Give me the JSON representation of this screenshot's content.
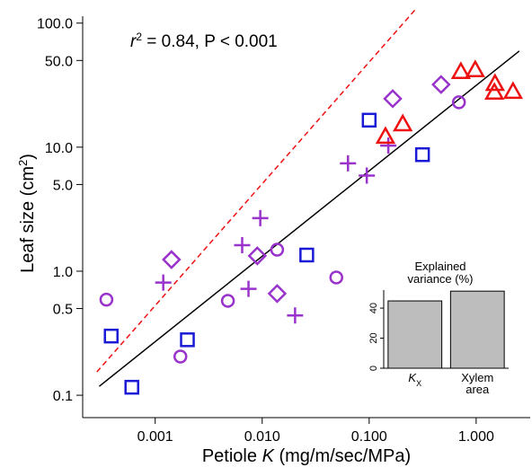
{
  "chart_data": [
    {
      "type": "scatter",
      "annotation": [
        "r",
        "2",
        " = 0.84, P < 0.001"
      ],
      "x_label": [
        "Petiole ",
        "K",
        " (mg/m/sec/MPa)"
      ],
      "y_label": [
        "Leaf size (cm",
        "2",
        ")"
      ],
      "log_x": true,
      "log_y": true,
      "xlim": [
        0.00021,
        3.2
      ],
      "ylim": [
        0.066,
        130
      ],
      "xticks": [
        {
          "value": 0.001,
          "label": "0.001"
        },
        {
          "value": 0.01,
          "label": "0.010"
        },
        {
          "value": 0.1,
          "label": "0.100"
        },
        {
          "value": 1,
          "label": "1.000"
        }
      ],
      "yticks": [
        0.1,
        0.5,
        {
          "value": 1,
          "label": "1.0"
        },
        {
          "value": 5,
          "label": "5.0"
        },
        {
          "value": 10,
          "label": "10.0"
        },
        {
          "value": 50,
          "label": "50.0"
        },
        {
          "value": 100,
          "label": "100.0"
        }
      ],
      "series": [
        {
          "marker": "square",
          "color": "#1a1ad6",
          "x": [
            0.000388,
            0.000605,
            0.002,
            0.0261,
            0.1,
            0.315
          ],
          "values": [
            0.3,
            0.116,
            0.28,
            1.35,
            16.5,
            8.7
          ]
        },
        {
          "marker": "circle",
          "color": "#9933cc",
          "x": [
            0.00035,
            0.00172,
            0.00478,
            0.0138,
            0.0493,
            0.69
          ],
          "values": [
            0.59,
            0.205,
            0.577,
            1.49,
            0.89,
            23
          ]
        },
        {
          "marker": "diamond",
          "color": "#9933cc",
          "x": [
            0.00142,
            0.009,
            0.0138,
            0.166,
            0.47
          ],
          "values": [
            1.24,
            1.33,
            0.66,
            24.6,
            32
          ]
        },
        {
          "marker": "plus",
          "color": "#9933cc",
          "x": [
            0.00119,
            0.0065,
            0.0096,
            0.00745,
            0.0203,
            0.0634,
            0.095,
            0.151
          ],
          "values": [
            0.81,
            1.62,
            2.68,
            0.72,
            0.44,
            7.4,
            5.9,
            10.3
          ]
        },
        {
          "marker": "triangle",
          "color": "#ee1111",
          "x": [
            0.142,
            0.206,
            0.72,
            0.98,
            1.5,
            1.48,
            2.21
          ],
          "values": [
            12.2,
            15.4,
            40.6,
            42,
            32.6,
            27.7,
            28.1
          ]
        }
      ],
      "lines": [
        {
          "color": "#000000",
          "dashed": false,
          "x": [
            0.0003,
            2.53
          ],
          "values": [
            0.118,
            59.6
          ]
        },
        {
          "color": "#ee1111",
          "dashed": true,
          "x": [
            0.000285,
            0.273
          ],
          "values": [
            0.154,
            130
          ]
        }
      ]
    },
    {
      "type": "bar",
      "title": [
        "Explained",
        "variance (%)"
      ],
      "categories": [
        {
          "text": "K",
          "subscript": "X"
        },
        {
          "lines": [
            "Xylem",
            "area"
          ]
        }
      ],
      "values": [
        44.8,
        51.3
      ],
      "color": "#bdbdbd",
      "ylim": [
        0,
        52
      ],
      "yticks": [
        0,
        20,
        40
      ]
    }
  ]
}
